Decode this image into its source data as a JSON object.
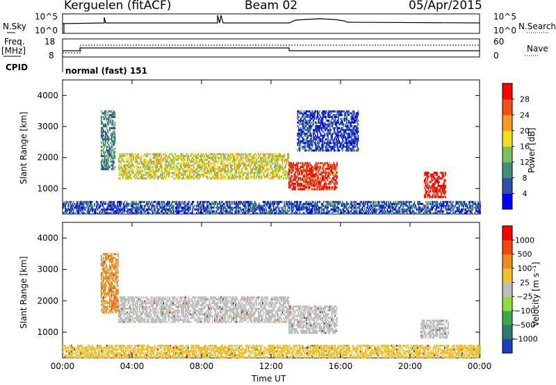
{
  "header": {
    "station": "Kerguelen (fitACF)",
    "beam": "Beam 02",
    "date": "05/Apr/2015"
  },
  "status_panels": {
    "nsky_label": "N.Sky",
    "nsky_ticks": [
      "10^5",
      "10^0"
    ],
    "nsearch_label": "N.Search",
    "nsearch_ticks": [
      "10^5",
      "10^0"
    ],
    "freq_label": "Freq.",
    "freq_unit": "[MHz]",
    "freq_ticks": [
      "18",
      "8"
    ],
    "nave_label": "Nave",
    "nave_ticks": [
      "60",
      "0"
    ],
    "cpid_label": "CPID",
    "cpid_text": "normal (fast) 151"
  },
  "chart_data": [
    {
      "type": "heatmap",
      "name": "power",
      "ylabel": "Slant Range [km]",
      "ylim": [
        180,
        4500
      ],
      "xlim": [
        0,
        24
      ],
      "y_ticks": [
        1000,
        2000,
        3000,
        4000
      ],
      "colorbar": {
        "label": "Power [dB]",
        "ticks": [
          4,
          8,
          12,
          16,
          20,
          24,
          28
        ],
        "colors": [
          "#0000ff",
          "#2f4fa8",
          "#3f8f7a",
          "#7dc05a",
          "#f0e020",
          "#f59a20",
          "#f05010",
          "#ff0000"
        ]
      },
      "regions": [
        {
          "t0": 3.2,
          "t1": 13.0,
          "r0": 1300,
          "r1": 2100,
          "level": 0.55
        },
        {
          "t0": 13.0,
          "t1": 15.8,
          "r0": 950,
          "r1": 1800,
          "level": 0.9
        },
        {
          "t0": 20.8,
          "t1": 22.0,
          "r0": 700,
          "r1": 1500,
          "level": 0.95
        },
        {
          "t0": 2.2,
          "t1": 3.0,
          "r0": 1600,
          "r1": 3500,
          "level": 0.3
        },
        {
          "t0": 13.5,
          "t1": 17.0,
          "r0": 2200,
          "r1": 3500,
          "level": 0.15
        },
        {
          "t0": 0.0,
          "t1": 24.0,
          "r0": 180,
          "r1": 550,
          "level": 0.2
        }
      ]
    },
    {
      "type": "heatmap",
      "name": "velocity",
      "xlabel": "Time UT",
      "ylabel": "Slant Range [km]",
      "ylim": [
        180,
        4500
      ],
      "xlim": [
        0,
        24
      ],
      "x_ticks": [
        "00:00",
        "04:00",
        "08:00",
        "12:00",
        "16:00",
        "20:00",
        "00:00"
      ],
      "y_ticks": [
        1000,
        2000,
        3000,
        4000
      ],
      "colorbar": {
        "label": "Velocity [m s⁻¹]",
        "ticks": [
          "1000",
          "500",
          "100",
          "25",
          "−25",
          "−100",
          "−500",
          "−1000"
        ],
        "colors": [
          "#1b3fbf",
          "#2f7a6a",
          "#3aa84a",
          "#8fdc3a",
          "#bdbdbd",
          "#f0c030",
          "#f08a20",
          "#f04a10",
          "#ff0000"
        ]
      },
      "regions": [
        {
          "t0": 3.2,
          "t1": 13.0,
          "r0": 1300,
          "r1": 2100,
          "color": "#bdbdbd"
        },
        {
          "t0": 13.0,
          "t1": 15.8,
          "r0": 950,
          "r1": 1800,
          "color": "#bdbdbd"
        },
        {
          "t0": 20.6,
          "t1": 22.2,
          "r0": 800,
          "r1": 1400,
          "color": "#bdbdbd"
        },
        {
          "t0": 2.2,
          "t1": 3.2,
          "r0": 1600,
          "r1": 3500,
          "color": "#f08a20"
        },
        {
          "t0": 0.0,
          "t1": 24.0,
          "r0": 180,
          "r1": 550,
          "color": "#f0c030"
        }
      ]
    }
  ]
}
